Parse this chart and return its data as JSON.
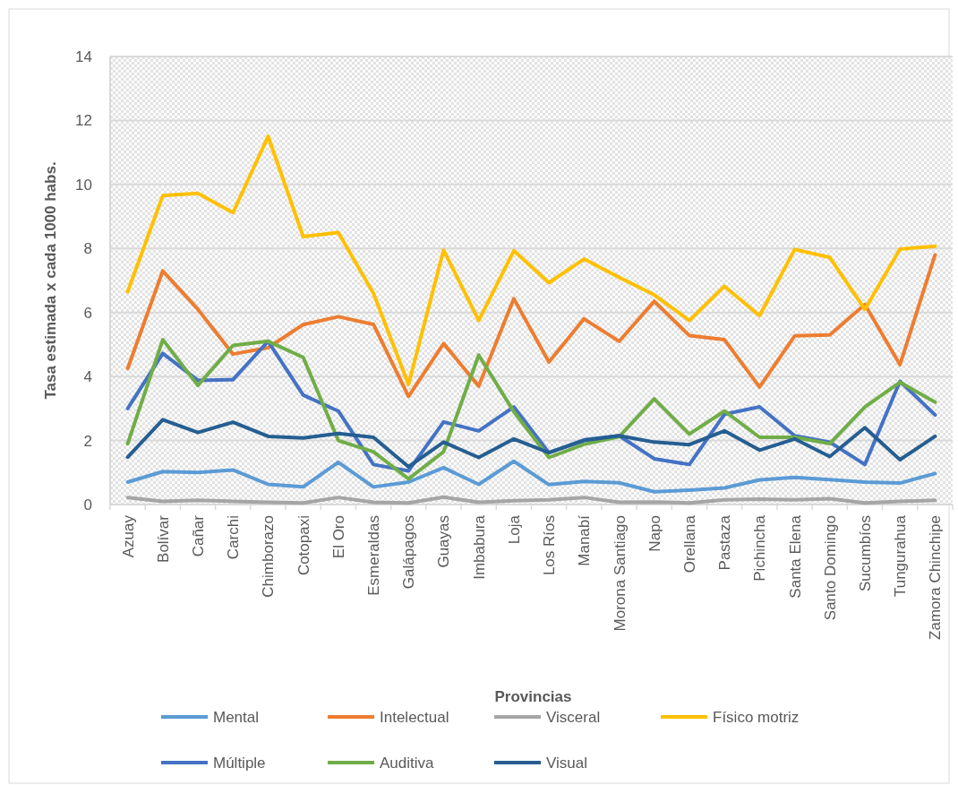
{
  "chart_data": {
    "type": "line",
    "xlabel": "Provincias",
    "ylabel": "Tasa estimada x cada 1000 habs.",
    "categories": [
      "Azuay",
      "Bolívar",
      "Cañar",
      "Carchi",
      "Chimborazo",
      "Cotopaxi",
      "El Oro",
      "Esmeraldas",
      "Galápagos",
      "Guayas",
      "Imbabura",
      "Loja",
      "Los Ríos",
      "Manabí",
      "Morona Santiago",
      "Napo",
      "Orellana",
      "Pastaza",
      "Pichincha",
      "Santa Elena",
      "Santo Domingo",
      "Sucumbíos",
      "Tungurahua",
      "Zamora Chinchipe"
    ],
    "ylim": [
      0,
      14
    ],
    "yticks": [
      0,
      2,
      4,
      6,
      8,
      10,
      12,
      14
    ],
    "grid": "y",
    "legend": "bottom",
    "marker": "none",
    "line_style": "solid",
    "series": [
      {
        "name": "Mental",
        "color": "#5b9bd5",
        "values": [
          0.7,
          1.03,
          1.0,
          1.08,
          0.63,
          0.55,
          1.32,
          0.55,
          0.7,
          1.15,
          0.63,
          1.35,
          0.62,
          0.72,
          0.68,
          0.4,
          0.45,
          0.52,
          0.77,
          0.85,
          0.78,
          0.7,
          0.67,
          0.97
        ]
      },
      {
        "name": "Intelectual",
        "color": "#ed7d31",
        "values": [
          4.25,
          7.3,
          6.1,
          4.7,
          4.9,
          5.62,
          5.87,
          5.63,
          3.38,
          5.03,
          3.7,
          6.43,
          4.45,
          5.8,
          5.1,
          6.35,
          5.28,
          5.15,
          3.67,
          5.27,
          5.3,
          6.25,
          4.37,
          7.8
        ]
      },
      {
        "name": "Visceral",
        "color": "#a5a5a5",
        "values": [
          0.22,
          0.1,
          0.13,
          0.1,
          0.07,
          0.05,
          0.22,
          0.07,
          0.05,
          0.23,
          0.07,
          0.12,
          0.15,
          0.22,
          0.07,
          0.08,
          0.05,
          0.15,
          0.17,
          0.15,
          0.18,
          0.05,
          0.1,
          0.13
        ]
      },
      {
        "name": "Físico motriz",
        "color": "#ffc000",
        "values": [
          6.65,
          9.65,
          9.72,
          9.12,
          11.5,
          8.37,
          8.5,
          6.6,
          3.75,
          7.95,
          5.75,
          7.93,
          6.93,
          7.67,
          7.1,
          6.55,
          5.75,
          6.82,
          5.9,
          7.97,
          7.72,
          6.1,
          7.98,
          8.07
        ]
      },
      {
        "name": "Múltiple",
        "color": "#4472c4",
        "values": [
          3.0,
          4.72,
          3.88,
          3.9,
          5.1,
          3.42,
          2.92,
          1.25,
          1.05,
          2.58,
          2.3,
          3.05,
          1.62,
          2.02,
          2.15,
          1.43,
          1.25,
          2.82,
          3.05,
          2.15,
          1.95,
          1.25,
          3.85,
          2.8
        ]
      },
      {
        "name": "Auditiva",
        "color": "#70ad47",
        "values": [
          1.9,
          5.15,
          3.72,
          4.97,
          5.1,
          4.6,
          2.0,
          1.65,
          0.8,
          1.65,
          4.67,
          2.9,
          1.47,
          1.88,
          2.12,
          3.3,
          2.2,
          2.92,
          2.1,
          2.1,
          1.9,
          3.05,
          3.82,
          3.2
        ]
      },
      {
        "name": "Visual",
        "color": "#255e91",
        "values": [
          1.48,
          2.65,
          2.25,
          2.57,
          2.13,
          2.08,
          2.22,
          2.1,
          1.18,
          1.95,
          1.47,
          2.05,
          1.62,
          2.0,
          2.15,
          1.95,
          1.87,
          2.3,
          1.7,
          2.05,
          1.5,
          2.4,
          1.4,
          2.13
        ]
      }
    ]
  }
}
